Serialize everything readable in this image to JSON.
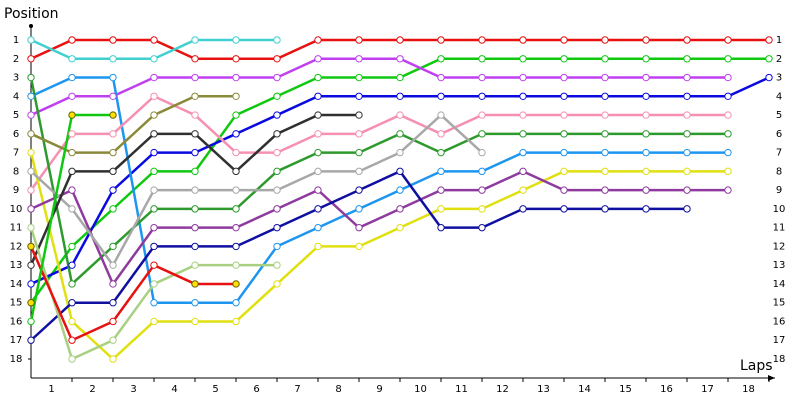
{
  "chart_data": {
    "type": "line",
    "y_label": "Position",
    "x_label": "Laps",
    "xlim": [
      0,
      18
    ],
    "ylim": [
      1,
      18
    ],
    "y_inverted": true,
    "xticks": [
      1,
      2,
      3,
      4,
      5,
      6,
      7,
      8,
      9,
      10,
      11,
      12,
      13,
      14,
      15,
      16,
      17,
      18
    ],
    "yticks": [
      1,
      2,
      3,
      4,
      5,
      6,
      7,
      8,
      9,
      10,
      11,
      12,
      13,
      14,
      15,
      16,
      17,
      18
    ],
    "series": [
      {
        "color": "#e81010",
        "values": [
          2,
          1,
          1,
          1,
          2,
          2,
          2,
          1,
          1,
          1,
          1,
          1,
          1,
          1,
          1,
          1,
          1,
          1,
          1
        ]
      },
      {
        "color": "#10c810",
        "values": [
          15,
          12,
          10,
          8,
          8,
          5,
          4,
          3,
          3,
          3,
          2,
          2,
          2,
          2,
          2,
          2,
          2,
          2,
          2
        ],
        "pit_stops": [
          0
        ]
      },
      {
        "color": "#c040f0",
        "values": [
          5,
          4,
          4,
          3,
          3,
          3,
          3,
          2,
          2,
          2,
          3,
          3,
          3,
          3,
          3,
          3,
          3,
          3
        ]
      },
      {
        "color": "#0a0ae0",
        "values": [
          14,
          13,
          9,
          7,
          7,
          6,
          5,
          4,
          4,
          4,
          4,
          4,
          4,
          4,
          4,
          4,
          4,
          4,
          3
        ]
      },
      {
        "color": "#1e96f0",
        "values": [
          4,
          3,
          3,
          15,
          15,
          15,
          12,
          11,
          10,
          9,
          8,
          8,
          7,
          7,
          7,
          7,
          7,
          7
        ]
      },
      {
        "color": "#f590b0",
        "values": [
          9,
          6,
          6,
          4,
          5,
          7,
          7,
          6,
          6,
          5,
          6,
          5,
          5,
          5,
          5,
          5,
          5,
          5
        ]
      },
      {
        "color": "#2e9a2e",
        "values": [
          3,
          14,
          12,
          10,
          10,
          10,
          8,
          7,
          7,
          6,
          7,
          6,
          6,
          6,
          6,
          6,
          6,
          6
        ]
      },
      {
        "color": "#e0e010",
        "values": [
          7,
          16,
          18,
          16,
          16,
          16,
          14,
          12,
          12,
          11,
          10,
          10,
          9,
          8,
          8,
          8,
          8,
          8
        ]
      },
      {
        "color": "#8e3a9e",
        "values": [
          10,
          9,
          14,
          11,
          11,
          11,
          10,
          9,
          11,
          10,
          9,
          9,
          8,
          9,
          9,
          9,
          9,
          9
        ]
      },
      {
        "color": "#1010a0",
        "values": [
          17,
          15,
          15,
          12,
          12,
          12,
          11,
          10,
          9,
          8,
          11,
          11,
          10,
          10,
          10,
          10,
          10
        ]
      },
      {
        "color": "#a8a8a8",
        "values": [
          8,
          10,
          13,
          9,
          9,
          9,
          9,
          8,
          8,
          7,
          5,
          7
        ]
      },
      {
        "color": "#303030",
        "values": [
          13,
          8,
          8,
          6,
          6,
          8,
          6,
          5,
          5
        ]
      },
      {
        "color": "#8a8a3a",
        "values": [
          6,
          7,
          7,
          5,
          4,
          4
        ]
      },
      {
        "color": "#a8d080",
        "values": [
          11,
          18,
          17,
          14,
          13,
          13,
          13
        ]
      },
      {
        "color": "#e81010",
        "values": [
          12,
          17,
          16,
          13,
          14,
          14
        ],
        "pit_stops": [
          0,
          4,
          5
        ]
      },
      {
        "color": "#40d0d0",
        "values": [
          1,
          2,
          2,
          2,
          1,
          1,
          1
        ]
      },
      {
        "color": "#10c810",
        "values": [
          16,
          5,
          5
        ],
        "pit_stops": [
          1,
          2
        ]
      }
    ]
  }
}
